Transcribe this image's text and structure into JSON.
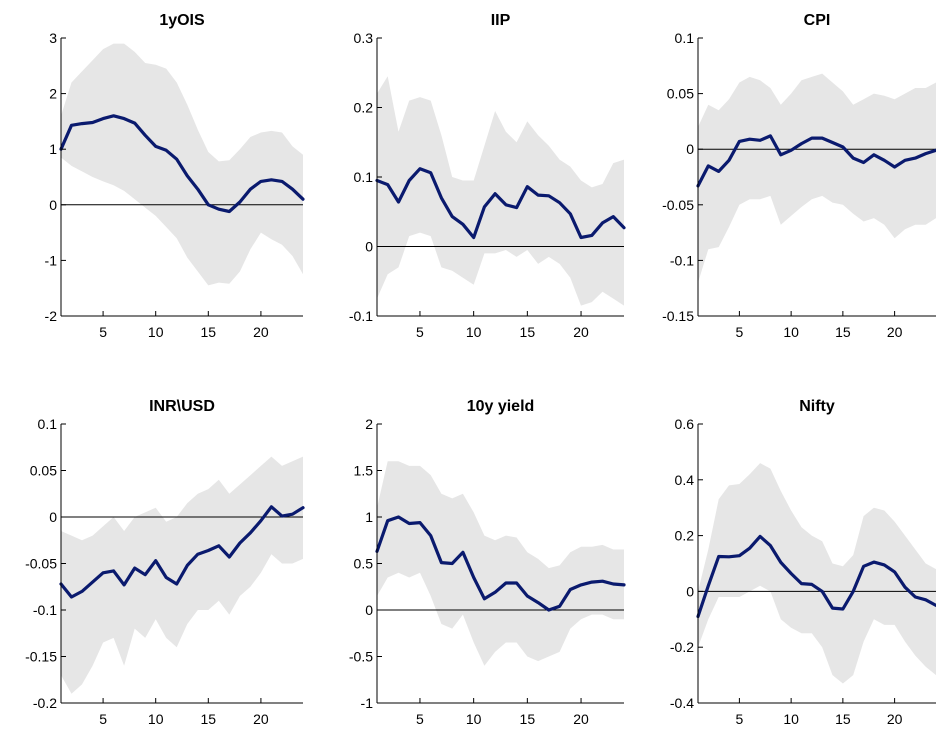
{
  "chart_data": [
    {
      "type": "line",
      "title": "1yOIS",
      "x": [
        1,
        2,
        3,
        4,
        5,
        6,
        7,
        8,
        9,
        10,
        11,
        12,
        13,
        14,
        15,
        16,
        17,
        18,
        19,
        20,
        21,
        22,
        23,
        24
      ],
      "ylim": [
        -2,
        3
      ],
      "yticks": [
        "-2",
        "-1",
        "0",
        "1",
        "2",
        "3"
      ],
      "xlim": [
        1,
        24
      ],
      "xticks": [
        "5",
        "10",
        "15",
        "20"
      ],
      "series": [
        {
          "role": "estimate",
          "values": [
            1.0,
            1.43,
            1.46,
            1.48,
            1.55,
            1.6,
            1.55,
            1.47,
            1.25,
            1.05,
            0.98,
            0.82,
            0.52,
            0.28,
            0.0,
            -0.08,
            -0.12,
            0.05,
            0.28,
            0.42,
            0.45,
            0.42,
            0.28,
            0.1
          ]
        },
        {
          "role": "upper",
          "values": [
            1.6,
            2.2,
            2.4,
            2.6,
            2.8,
            2.9,
            2.9,
            2.75,
            2.55,
            2.52,
            2.45,
            2.2,
            1.8,
            1.35,
            0.95,
            0.78,
            0.8,
            1.0,
            1.22,
            1.3,
            1.33,
            1.3,
            1.05,
            0.9
          ]
        },
        {
          "role": "lower",
          "values": [
            0.85,
            0.7,
            0.6,
            0.5,
            0.42,
            0.35,
            0.25,
            0.1,
            -0.05,
            -0.2,
            -0.4,
            -0.6,
            -0.95,
            -1.2,
            -1.45,
            -1.4,
            -1.42,
            -1.2,
            -0.8,
            -0.5,
            -0.62,
            -0.72,
            -0.92,
            -1.25
          ]
        }
      ],
      "zero_line": true,
      "band_color": "#e6e6e6",
      "line_color": "#0a1a6e"
    },
    {
      "type": "line",
      "title": "IIP",
      "x": [
        1,
        2,
        3,
        4,
        5,
        6,
        7,
        8,
        9,
        10,
        11,
        12,
        13,
        14,
        15,
        16,
        17,
        18,
        19,
        20,
        21,
        22,
        23,
        24
      ],
      "ylim": [
        -0.1,
        0.3
      ],
      "yticks": [
        "-0.1",
        "0",
        "0.1",
        "0.2",
        "0.3"
      ],
      "xlim": [
        1,
        24
      ],
      "xticks": [
        "5",
        "10",
        "15",
        "20"
      ],
      "series": [
        {
          "role": "estimate",
          "values": [
            0.095,
            0.089,
            0.064,
            0.095,
            0.112,
            0.106,
            0.07,
            0.043,
            0.032,
            0.013,
            0.057,
            0.076,
            0.06,
            0.056,
            0.086,
            0.074,
            0.073,
            0.063,
            0.047,
            0.013,
            0.016,
            0.034,
            0.043,
            0.027
          ]
        },
        {
          "role": "upper",
          "values": [
            0.22,
            0.245,
            0.165,
            0.21,
            0.215,
            0.21,
            0.16,
            0.1,
            0.095,
            0.095,
            0.145,
            0.195,
            0.165,
            0.15,
            0.18,
            0.16,
            0.145,
            0.125,
            0.115,
            0.095,
            0.085,
            0.09,
            0.12,
            0.125
          ]
        },
        {
          "role": "lower",
          "values": [
            -0.075,
            -0.04,
            -0.03,
            0.015,
            0.02,
            0.015,
            -0.03,
            -0.035,
            -0.045,
            -0.055,
            -0.01,
            -0.01,
            -0.005,
            -0.015,
            -0.005,
            -0.025,
            -0.015,
            -0.025,
            -0.045,
            -0.085,
            -0.08,
            -0.065,
            -0.075,
            -0.085
          ]
        }
      ],
      "zero_line": true,
      "band_color": "#e6e6e6",
      "line_color": "#0a1a6e"
    },
    {
      "type": "line",
      "title": "CPI",
      "x": [
        1,
        2,
        3,
        4,
        5,
        6,
        7,
        8,
        9,
        10,
        11,
        12,
        13,
        14,
        15,
        16,
        17,
        18,
        19,
        20,
        21,
        22,
        23,
        24
      ],
      "ylim": [
        -0.15,
        0.1
      ],
      "yticks": [
        "-0.15",
        "-0.1",
        "-0.05",
        "0",
        "0.05",
        "0.1"
      ],
      "xlim": [
        1,
        24
      ],
      "xticks": [
        "5",
        "10",
        "15",
        "20"
      ],
      "series": [
        {
          "role": "estimate",
          "values": [
            -0.033,
            -0.015,
            -0.02,
            -0.01,
            0.007,
            0.009,
            0.008,
            0.012,
            -0.005,
            -0.001,
            0.005,
            0.01,
            0.01,
            0.006,
            0.002,
            -0.008,
            -0.012,
            -0.005,
            -0.01,
            -0.016,
            -0.01,
            -0.008,
            -0.004,
            -0.001
          ]
        },
        {
          "role": "upper",
          "values": [
            0.02,
            0.04,
            0.035,
            0.045,
            0.06,
            0.065,
            0.062,
            0.055,
            0.04,
            0.05,
            0.062,
            0.065,
            0.068,
            0.06,
            0.052,
            0.04,
            0.045,
            0.05,
            0.048,
            0.045,
            0.05,
            0.055,
            0.055,
            0.06
          ]
        },
        {
          "role": "lower",
          "values": [
            -0.12,
            -0.09,
            -0.088,
            -0.07,
            -0.05,
            -0.045,
            -0.045,
            -0.042,
            -0.068,
            -0.06,
            -0.052,
            -0.045,
            -0.042,
            -0.048,
            -0.05,
            -0.058,
            -0.065,
            -0.062,
            -0.068,
            -0.08,
            -0.072,
            -0.068,
            -0.068,
            -0.062
          ]
        }
      ],
      "zero_line": true,
      "band_color": "#e6e6e6",
      "line_color": "#0a1a6e"
    },
    {
      "type": "line",
      "title": "INR\\USD",
      "x": [
        1,
        2,
        3,
        4,
        5,
        6,
        7,
        8,
        9,
        10,
        11,
        12,
        13,
        14,
        15,
        16,
        17,
        18,
        19,
        20,
        21,
        22,
        23,
        24
      ],
      "ylim": [
        -0.2,
        0.1
      ],
      "yticks": [
        "-0.2",
        "-0.15",
        "-0.1",
        "-0.05",
        "0",
        "0.05",
        "0.1"
      ],
      "xlim": [
        1,
        24
      ],
      "xticks": [
        "5",
        "10",
        "15",
        "20"
      ],
      "series": [
        {
          "role": "estimate",
          "values": [
            -0.072,
            -0.086,
            -0.08,
            -0.07,
            -0.06,
            -0.058,
            -0.073,
            -0.055,
            -0.062,
            -0.047,
            -0.065,
            -0.072,
            -0.052,
            -0.04,
            -0.036,
            -0.031,
            -0.043,
            -0.028,
            -0.017,
            -0.004,
            0.011,
            0.001,
            0.003,
            0.01
          ]
        },
        {
          "role": "upper",
          "values": [
            -0.015,
            -0.02,
            -0.025,
            -0.02,
            -0.01,
            0.0,
            -0.015,
            0.0,
            0.005,
            0.01,
            -0.005,
            0.0,
            0.015,
            0.025,
            0.03,
            0.04,
            0.025,
            0.035,
            0.045,
            0.055,
            0.065,
            0.055,
            0.06,
            0.065
          ]
        },
        {
          "role": "lower",
          "values": [
            -0.17,
            -0.19,
            -0.18,
            -0.16,
            -0.135,
            -0.13,
            -0.16,
            -0.12,
            -0.13,
            -0.11,
            -0.13,
            -0.14,
            -0.115,
            -0.1,
            -0.1,
            -0.09,
            -0.105,
            -0.085,
            -0.075,
            -0.06,
            -0.04,
            -0.05,
            -0.05,
            -0.045
          ]
        }
      ],
      "zero_line": true,
      "band_color": "#e6e6e6",
      "line_color": "#0a1a6e"
    },
    {
      "type": "line",
      "title": "10y yield",
      "x": [
        1,
        2,
        3,
        4,
        5,
        6,
        7,
        8,
        9,
        10,
        11,
        12,
        13,
        14,
        15,
        16,
        17,
        18,
        19,
        20,
        21,
        22,
        23,
        24
      ],
      "ylim": [
        -1,
        2
      ],
      "yticks": [
        "-1",
        "-0.5",
        "0",
        "0.5",
        "1",
        "1.5",
        "2"
      ],
      "xlim": [
        1,
        24
      ],
      "xticks": [
        "5",
        "10",
        "15",
        "20"
      ],
      "series": [
        {
          "role": "estimate",
          "values": [
            0.63,
            0.96,
            1.0,
            0.93,
            0.94,
            0.8,
            0.51,
            0.5,
            0.62,
            0.35,
            0.12,
            0.19,
            0.29,
            0.29,
            0.15,
            0.08,
            0.0,
            0.04,
            0.22,
            0.27,
            0.3,
            0.31,
            0.28,
            0.27
          ]
        },
        {
          "role": "upper",
          "values": [
            1.1,
            1.6,
            1.6,
            1.55,
            1.55,
            1.45,
            1.25,
            1.2,
            1.25,
            1.05,
            0.8,
            0.75,
            0.8,
            0.78,
            0.62,
            0.55,
            0.45,
            0.48,
            0.62,
            0.68,
            0.68,
            0.7,
            0.65,
            0.65
          ]
        },
        {
          "role": "lower",
          "values": [
            0.15,
            0.35,
            0.4,
            0.35,
            0.4,
            0.15,
            -0.15,
            -0.2,
            -0.05,
            -0.35,
            -0.6,
            -0.45,
            -0.35,
            -0.35,
            -0.5,
            -0.55,
            -0.5,
            -0.45,
            -0.2,
            -0.1,
            -0.05,
            -0.05,
            -0.1,
            -0.1
          ]
        }
      ],
      "zero_line": true,
      "band_color": "#e6e6e6",
      "line_color": "#0a1a6e"
    },
    {
      "type": "line",
      "title": "Nifty",
      "x": [
        1,
        2,
        3,
        4,
        5,
        6,
        7,
        8,
        9,
        10,
        11,
        12,
        13,
        14,
        15,
        16,
        17,
        18,
        19,
        20,
        21,
        22,
        23,
        24
      ],
      "ylim": [
        -0.4,
        0.6
      ],
      "yticks": [
        "-0.4",
        "-0.2",
        "0",
        "0.2",
        "0.4",
        "0.6"
      ],
      "xlim": [
        1,
        24
      ],
      "xticks": [
        "5",
        "10",
        "15",
        "20"
      ],
      "series": [
        {
          "role": "estimate",
          "values": [
            -0.09,
            0.02,
            0.125,
            0.124,
            0.128,
            0.155,
            0.197,
            0.164,
            0.104,
            0.064,
            0.028,
            0.025,
            0.0,
            -0.06,
            -0.063,
            0.0,
            0.09,
            0.105,
            0.095,
            0.07,
            0.015,
            -0.02,
            -0.03,
            -0.05
          ]
        },
        {
          "role": "upper",
          "values": [
            0.0,
            0.15,
            0.33,
            0.38,
            0.385,
            0.42,
            0.46,
            0.44,
            0.36,
            0.29,
            0.23,
            0.2,
            0.18,
            0.1,
            0.09,
            0.13,
            0.27,
            0.3,
            0.29,
            0.25,
            0.2,
            0.15,
            0.1,
            0.08
          ]
        },
        {
          "role": "lower",
          "values": [
            -0.2,
            -0.1,
            -0.02,
            -0.02,
            -0.02,
            0.0,
            0.02,
            0.0,
            -0.1,
            -0.13,
            -0.15,
            -0.15,
            -0.2,
            -0.3,
            -0.33,
            -0.3,
            -0.18,
            -0.1,
            -0.12,
            -0.12,
            -0.18,
            -0.23,
            -0.27,
            -0.3
          ]
        }
      ],
      "zero_line": true,
      "band_color": "#e6e6e6",
      "line_color": "#0a1a6e"
    }
  ]
}
